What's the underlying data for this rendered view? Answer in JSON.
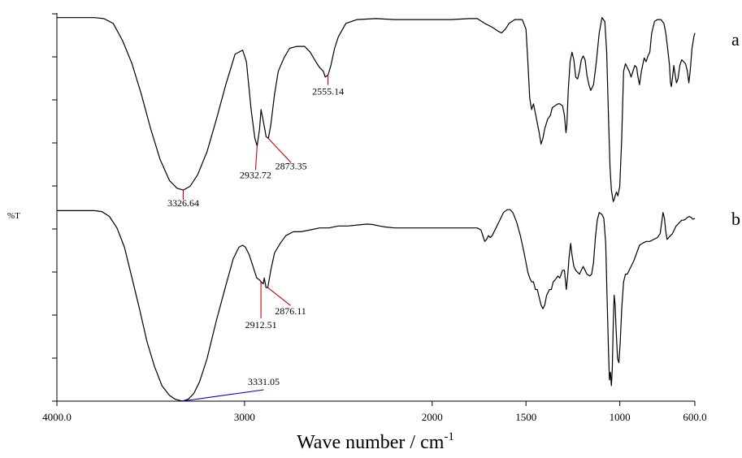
{
  "chart_data": {
    "type": "line",
    "title": "",
    "xlabel": "Wave number / cm",
    "xlabel_sup": "-1",
    "ylabel": "%T",
    "xlim": [
      4000,
      600
    ],
    "x_reversed": true,
    "x_ticks": [
      {
        "value": 4000,
        "label": "4000.0"
      },
      {
        "value": 3000,
        "label": "3000"
      },
      {
        "value": 2000,
        "label": "2000"
      },
      {
        "value": 1500,
        "label": "1500"
      },
      {
        "value": 1000,
        "label": "1000"
      },
      {
        "value": 600,
        "label": "600.0"
      }
    ],
    "y_tick_count": 10,
    "grid": false,
    "series": [
      {
        "name": "a",
        "color": "#000000",
        "ylim": [
          0,
          100
        ],
        "points": [
          [
            4000,
            98
          ],
          [
            3800,
            98
          ],
          [
            3750,
            97.5
          ],
          [
            3700,
            95
          ],
          [
            3650,
            86
          ],
          [
            3600,
            74
          ],
          [
            3550,
            58
          ],
          [
            3500,
            40
          ],
          [
            3450,
            24
          ],
          [
            3400,
            13
          ],
          [
            3360,
            9
          ],
          [
            3327,
            8
          ],
          [
            3290,
            10
          ],
          [
            3250,
            16
          ],
          [
            3200,
            28
          ],
          [
            3150,
            45
          ],
          [
            3100,
            63
          ],
          [
            3050,
            79
          ],
          [
            3010,
            81
          ],
          [
            2990,
            75
          ],
          [
            2965,
            50
          ],
          [
            2945,
            35
          ],
          [
            2933,
            31
          ],
          [
            2920,
            40
          ],
          [
            2912,
            50
          ],
          [
            2900,
            44
          ],
          [
            2885,
            36
          ],
          [
            2873,
            35
          ],
          [
            2860,
            42
          ],
          [
            2840,
            58
          ],
          [
            2820,
            70
          ],
          [
            2790,
            77
          ],
          [
            2760,
            82
          ],
          [
            2720,
            83
          ],
          [
            2680,
            83
          ],
          [
            2650,
            80
          ],
          [
            2620,
            75
          ],
          [
            2600,
            72
          ],
          [
            2580,
            70
          ],
          [
            2570,
            67
          ],
          [
            2555,
            68
          ],
          [
            2540,
            73
          ],
          [
            2520,
            82
          ],
          [
            2500,
            88
          ],
          [
            2460,
            95
          ],
          [
            2400,
            97
          ],
          [
            2300,
            97.5
          ],
          [
            2200,
            97
          ],
          [
            2100,
            97
          ],
          [
            2000,
            97
          ],
          [
            1900,
            97
          ],
          [
            1800,
            97.5
          ],
          [
            1760,
            97.5
          ],
          [
            1720,
            95
          ],
          [
            1680,
            93
          ],
          [
            1650,
            91
          ],
          [
            1630,
            90
          ],
          [
            1610,
            92
          ],
          [
            1590,
            95
          ],
          [
            1560,
            97
          ],
          [
            1520,
            97
          ],
          [
            1500,
            92
          ],
          [
            1490,
            75
          ],
          [
            1480,
            56
          ],
          [
            1470,
            50
          ],
          [
            1460,
            53
          ],
          [
            1450,
            48
          ],
          [
            1440,
            43
          ],
          [
            1430,
            38
          ],
          [
            1420,
            32
          ],
          [
            1410,
            35
          ],
          [
            1400,
            40
          ],
          [
            1385,
            45
          ],
          [
            1370,
            47
          ],
          [
            1360,
            51
          ],
          [
            1345,
            52
          ],
          [
            1330,
            53
          ],
          [
            1320,
            53
          ],
          [
            1305,
            52
          ],
          [
            1295,
            47
          ],
          [
            1287,
            38
          ],
          [
            1282,
            42
          ],
          [
            1275,
            60
          ],
          [
            1265,
            75
          ],
          [
            1255,
            80
          ],
          [
            1245,
            76
          ],
          [
            1235,
            67
          ],
          [
            1225,
            66
          ],
          [
            1215,
            70
          ],
          [
            1205,
            76
          ],
          [
            1195,
            78
          ],
          [
            1185,
            76
          ],
          [
            1175,
            68
          ],
          [
            1165,
            63
          ],
          [
            1155,
            60
          ],
          [
            1140,
            63
          ],
          [
            1125,
            75
          ],
          [
            1110,
            90
          ],
          [
            1095,
            98
          ],
          [
            1080,
            96
          ],
          [
            1070,
            80
          ],
          [
            1060,
            45
          ],
          [
            1052,
            20
          ],
          [
            1045,
            8
          ],
          [
            1035,
            2
          ],
          [
            1030,
            3
          ],
          [
            1025,
            5
          ],
          [
            1018,
            7
          ],
          [
            1010,
            5
          ],
          [
            1000,
            10
          ],
          [
            990,
            35
          ],
          [
            980,
            70
          ],
          [
            970,
            74
          ],
          [
            960,
            72
          ],
          [
            950,
            70
          ],
          [
            940,
            67
          ],
          [
            930,
            70
          ],
          [
            920,
            73
          ],
          [
            910,
            72
          ],
          [
            905,
            68
          ],
          [
            895,
            63
          ],
          [
            885,
            70
          ],
          [
            870,
            77
          ],
          [
            860,
            75
          ],
          [
            850,
            78
          ],
          [
            840,
            80
          ],
          [
            830,
            90
          ],
          [
            815,
            96
          ],
          [
            800,
            97
          ],
          [
            780,
            97
          ],
          [
            765,
            95
          ],
          [
            755,
            90
          ],
          [
            745,
            82
          ],
          [
            735,
            73
          ],
          [
            730,
            64
          ],
          [
            725,
            62
          ],
          [
            720,
            66
          ],
          [
            712,
            73
          ],
          [
            705,
            68
          ],
          [
            698,
            64
          ],
          [
            690,
            66
          ],
          [
            680,
            73
          ],
          [
            670,
            76
          ],
          [
            660,
            75
          ],
          [
            650,
            74
          ],
          [
            640,
            70
          ],
          [
            632,
            64
          ],
          [
            625,
            70
          ],
          [
            615,
            82
          ],
          [
            605,
            88
          ],
          [
            600,
            90
          ]
        ]
      },
      {
        "name": "b",
        "color": "#000000",
        "ylim": [
          0,
          100
        ],
        "points": [
          [
            4000,
            99
          ],
          [
            3900,
            99
          ],
          [
            3800,
            99
          ],
          [
            3760,
            98.5
          ],
          [
            3720,
            96
          ],
          [
            3680,
            90
          ],
          [
            3640,
            80
          ],
          [
            3600,
            64
          ],
          [
            3560,
            48
          ],
          [
            3520,
            31
          ],
          [
            3480,
            18
          ],
          [
            3440,
            8
          ],
          [
            3400,
            3
          ],
          [
            3370,
            1
          ],
          [
            3331,
            0
          ],
          [
            3300,
            1
          ],
          [
            3270,
            4
          ],
          [
            3240,
            10
          ],
          [
            3200,
            22
          ],
          [
            3150,
            42
          ],
          [
            3100,
            60
          ],
          [
            3060,
            74
          ],
          [
            3030,
            80
          ],
          [
            3010,
            81
          ],
          [
            2995,
            80
          ],
          [
            2975,
            76
          ],
          [
            2955,
            70
          ],
          [
            2935,
            64
          ],
          [
            2920,
            63
          ],
          [
            2912,
            62
          ],
          [
            2900,
            61
          ],
          [
            2895,
            64
          ],
          [
            2885,
            59
          ],
          [
            2876,
            59
          ],
          [
            2860,
            68
          ],
          [
            2840,
            77
          ],
          [
            2810,
            82
          ],
          [
            2780,
            86
          ],
          [
            2740,
            88
          ],
          [
            2700,
            88
          ],
          [
            2650,
            89
          ],
          [
            2600,
            90
          ],
          [
            2550,
            90
          ],
          [
            2500,
            91
          ],
          [
            2450,
            91
          ],
          [
            2400,
            91.5
          ],
          [
            2350,
            92
          ],
          [
            2320,
            91.8
          ],
          [
            2280,
            91
          ],
          [
            2250,
            90.5
          ],
          [
            2200,
            90
          ],
          [
            2100,
            90
          ],
          [
            2000,
            90
          ],
          [
            1900,
            90
          ],
          [
            1800,
            90
          ],
          [
            1760,
            90
          ],
          [
            1740,
            89
          ],
          [
            1730,
            86
          ],
          [
            1720,
            83
          ],
          [
            1710,
            84
          ],
          [
            1700,
            86
          ],
          [
            1690,
            85
          ],
          [
            1680,
            86
          ],
          [
            1660,
            90
          ],
          [
            1640,
            94
          ],
          [
            1620,
            98
          ],
          [
            1600,
            99.5
          ],
          [
            1585,
            99.5
          ],
          [
            1570,
            98
          ],
          [
            1550,
            93
          ],
          [
            1530,
            86
          ],
          [
            1510,
            77
          ],
          [
            1500,
            72
          ],
          [
            1490,
            67
          ],
          [
            1480,
            64
          ],
          [
            1470,
            62
          ],
          [
            1460,
            62
          ],
          [
            1450,
            58
          ],
          [
            1440,
            58
          ],
          [
            1430,
            54
          ],
          [
            1420,
            50
          ],
          [
            1410,
            48
          ],
          [
            1400,
            50
          ],
          [
            1390,
            55
          ],
          [
            1375,
            58
          ],
          [
            1365,
            58
          ],
          [
            1355,
            62
          ],
          [
            1345,
            63
          ],
          [
            1330,
            65
          ],
          [
            1320,
            64
          ],
          [
            1305,
            68
          ],
          [
            1295,
            68
          ],
          [
            1285,
            58
          ],
          [
            1278,
            65
          ],
          [
            1270,
            75
          ],
          [
            1262,
            82
          ],
          [
            1255,
            76
          ],
          [
            1245,
            70
          ],
          [
            1235,
            68
          ],
          [
            1225,
            67
          ],
          [
            1215,
            66
          ],
          [
            1205,
            68
          ],
          [
            1195,
            70
          ],
          [
            1185,
            68
          ],
          [
            1175,
            66
          ],
          [
            1160,
            65
          ],
          [
            1150,
            66
          ],
          [
            1140,
            72
          ],
          [
            1130,
            85
          ],
          [
            1120,
            94
          ],
          [
            1110,
            98
          ],
          [
            1095,
            97
          ],
          [
            1085,
            95
          ],
          [
            1075,
            82
          ],
          [
            1068,
            55
          ],
          [
            1060,
            25
          ],
          [
            1055,
            11
          ],
          [
            1050,
            15
          ],
          [
            1045,
            8
          ],
          [
            1040,
            17
          ],
          [
            1035,
            40
          ],
          [
            1030,
            55
          ],
          [
            1025,
            50
          ],
          [
            1020,
            38
          ],
          [
            1012,
            22
          ],
          [
            1005,
            20
          ],
          [
            998,
            30
          ],
          [
            990,
            48
          ],
          [
            980,
            62
          ],
          [
            970,
            66
          ],
          [
            960,
            66
          ],
          [
            950,
            68
          ],
          [
            940,
            70
          ],
          [
            925,
            73
          ],
          [
            910,
            77
          ],
          [
            895,
            81
          ],
          [
            880,
            82
          ],
          [
            860,
            83
          ],
          [
            840,
            83
          ],
          [
            820,
            84
          ],
          [
            800,
            85
          ],
          [
            785,
            87
          ],
          [
            778,
            92
          ],
          [
            770,
            98
          ],
          [
            762,
            95
          ],
          [
            755,
            88
          ],
          [
            748,
            84
          ],
          [
            740,
            85
          ],
          [
            730,
            86
          ],
          [
            720,
            87
          ],
          [
            710,
            89
          ],
          [
            700,
            91
          ],
          [
            690,
            92
          ],
          [
            680,
            93
          ],
          [
            670,
            94
          ],
          [
            660,
            94
          ],
          [
            650,
            94.5
          ],
          [
            640,
            95.5
          ],
          [
            630,
            96
          ],
          [
            620,
            95.5
          ],
          [
            610,
            94.5
          ],
          [
            600,
            95
          ]
        ]
      }
    ],
    "annotations": [
      {
        "series": "a",
        "x": 3326.64,
        "label": "3326.64",
        "color": "#cc0000"
      },
      {
        "series": "a",
        "x": 2932.72,
        "label": "2932.72",
        "color": "#cc0000"
      },
      {
        "series": "a",
        "x": 2873.35,
        "label": "2873.35",
        "color": "#cc0000"
      },
      {
        "series": "a",
        "x": 2555.14,
        "label": "2555.14",
        "color": "#cc0000"
      },
      {
        "series": "b",
        "x": 2912.51,
        "label": "2912.51",
        "color": "#cc0000"
      },
      {
        "series": "b",
        "x": 2876.11,
        "label": "2876.11",
        "color": "#cc0000"
      },
      {
        "series": "b",
        "x": 3331.05,
        "label": "3331.05",
        "color": "#0000cc"
      }
    ]
  }
}
